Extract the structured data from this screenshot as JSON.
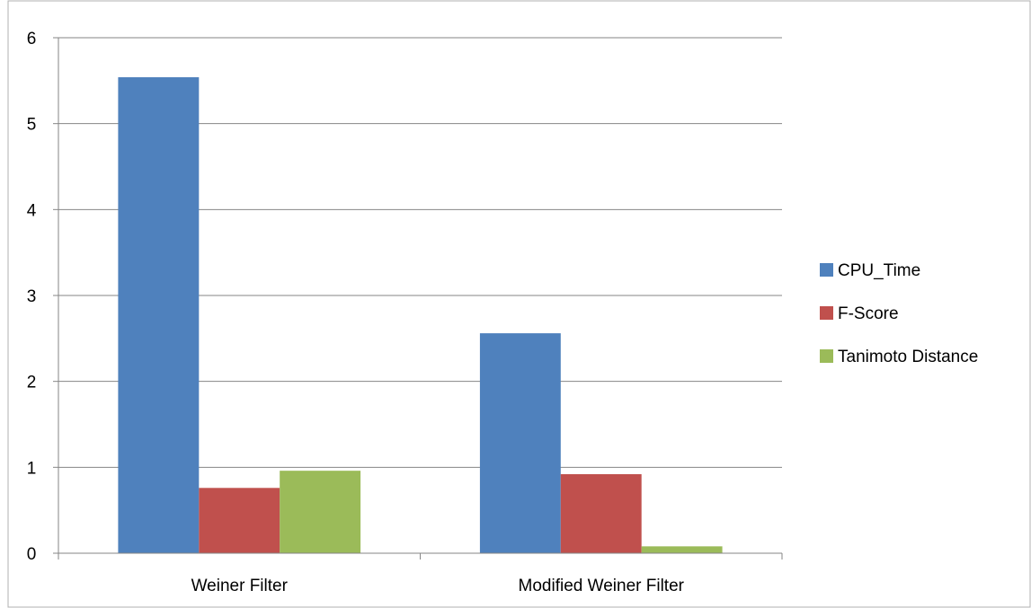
{
  "chart_data": {
    "type": "bar",
    "title": "",
    "xlabel": "",
    "ylabel": "",
    "categories": [
      "Weiner Filter",
      "Modified Weiner Filter"
    ],
    "series": [
      {
        "name": "CPU_Time",
        "values": [
          5.54,
          2.56
        ],
        "color": "#4f81bd"
      },
      {
        "name": "F-Score",
        "values": [
          0.76,
          0.92
        ],
        "color": "#c0504d"
      },
      {
        "name": "Tanimoto Distance",
        "values": [
          0.96,
          0.08
        ],
        "color": "#9bbb59"
      }
    ],
    "ylim": [
      0,
      6
    ],
    "yticks": [
      "0",
      "1",
      "2",
      "3",
      "4",
      "5",
      "6"
    ],
    "grid": true,
    "legend_position": "right"
  }
}
